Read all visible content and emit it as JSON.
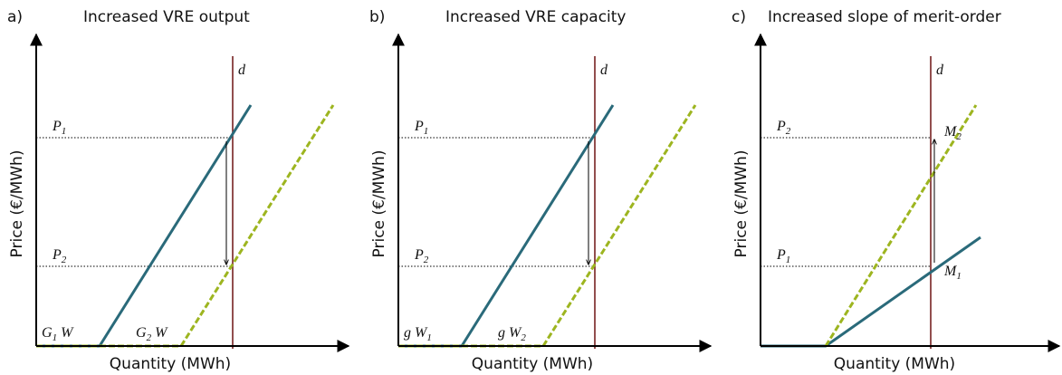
{
  "panels": [
    {
      "label": "a)",
      "title": "Increased VRE output",
      "y_label": "Price (€/MWh)",
      "x_label": "Quantity (MWh)",
      "demand": "d",
      "price_labels": [
        {
          "text": "P",
          "sub": "1"
        },
        {
          "text": "P",
          "sub": "2"
        }
      ],
      "curve_labels": [
        {
          "text": "G",
          "sub": "1",
          "after": " W"
        },
        {
          "text": "G",
          "sub": "2",
          "after": " W"
        }
      ]
    },
    {
      "label": "b)",
      "title": "Increased VRE capacity",
      "y_label": "Price (€/MWh)",
      "x_label": "Quantity (MWh)",
      "demand": "d",
      "price_labels": [
        {
          "text": "P",
          "sub": "1"
        },
        {
          "text": "P",
          "sub": "2"
        }
      ],
      "curve_labels": [
        {
          "text": "g W",
          "sub": "1"
        },
        {
          "text": "g W",
          "sub": "2"
        }
      ]
    },
    {
      "label": "c)",
      "title": "Increased slope of merit-order",
      "y_label": "Price (€/MWh)",
      "x_label": "Quantity (MWh)",
      "demand": "d",
      "price_labels": [
        {
          "text": "P",
          "sub": "2"
        },
        {
          "text": "P",
          "sub": "1"
        }
      ],
      "point_labels": [
        {
          "text": "M",
          "sub": "2"
        },
        {
          "text": "M",
          "sub": "1"
        }
      ]
    }
  ]
}
